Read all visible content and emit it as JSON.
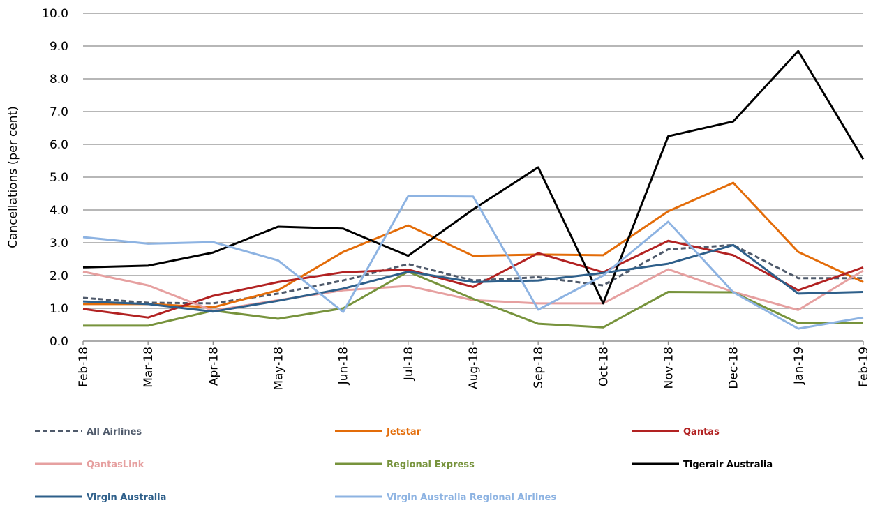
{
  "chart_data": {
    "type": "line",
    "y_label": "Cancellations (per cent)",
    "categories": [
      "Feb-18",
      "Mar-18",
      "Apr-18",
      "May-18",
      "Jun-18",
      "Jul-18",
      "Aug-18",
      "Sep-18",
      "Oct-18",
      "Nov-18",
      "Dec-18",
      "Jan-19",
      "Feb-19"
    ],
    "ylim": [
      0,
      10
    ],
    "yticks": [
      {
        "value": 0,
        "label": "0.0"
      },
      {
        "value": 1,
        "label": "1.0"
      },
      {
        "value": 2,
        "label": "2.0"
      },
      {
        "value": 3,
        "label": "3.0"
      },
      {
        "value": 4,
        "label": "4.0"
      },
      {
        "value": 5,
        "label": "5.0"
      },
      {
        "value": 6,
        "label": "6.0"
      },
      {
        "value": 7,
        "label": "7.0"
      },
      {
        "value": 8,
        "label": "8.0"
      },
      {
        "value": 9,
        "label": "9.0"
      },
      {
        "value": 10,
        "label": "10.0"
      }
    ],
    "grid": true,
    "legend": "bottom",
    "series": [
      {
        "name": "All Airlines",
        "color": "#4f5a6b",
        "dashed": true,
        "values": [
          1.32,
          1.17,
          1.15,
          1.45,
          1.85,
          2.35,
          1.85,
          1.95,
          1.7,
          2.8,
          2.93,
          1.92,
          1.92
        ]
      },
      {
        "name": "Jetstar",
        "color": "#e36c09",
        "values": [
          1.13,
          1.13,
          1.03,
          1.55,
          2.72,
          3.53,
          2.6,
          2.64,
          2.62,
          3.96,
          4.83,
          2.72,
          1.8
        ]
      },
      {
        "name": "Qantas",
        "color": "#b22222",
        "values": [
          0.98,
          0.72,
          1.38,
          1.8,
          2.1,
          2.18,
          1.65,
          2.68,
          2.1,
          3.06,
          2.62,
          1.55,
          2.25
        ]
      },
      {
        "name": "QantasLink",
        "color": "#e6a0a0",
        "values": [
          2.12,
          1.7,
          0.93,
          1.25,
          1.55,
          1.68,
          1.25,
          1.15,
          1.15,
          2.19,
          1.5,
          0.95,
          2.15
        ]
      },
      {
        "name": "Regional Express",
        "color": "#77933c",
        "values": [
          0.47,
          0.47,
          0.93,
          0.68,
          1.0,
          2.12,
          1.29,
          0.53,
          0.42,
          1.5,
          1.49,
          0.55,
          0.55
        ]
      },
      {
        "name": "Tigerair Australia",
        "color": "#000000",
        "values": [
          2.25,
          2.3,
          2.7,
          3.49,
          3.43,
          2.6,
          4.02,
          5.3,
          1.15,
          6.25,
          6.7,
          8.85,
          5.55
        ]
      },
      {
        "name": "Virgin Australia",
        "color": "#2e5f8a",
        "values": [
          1.21,
          1.13,
          0.9,
          1.23,
          1.6,
          2.12,
          1.8,
          1.85,
          2.08,
          2.36,
          2.93,
          1.45,
          1.5
        ]
      },
      {
        "name": "Virgin Australia Regional Airlines",
        "color": "#8db3e2",
        "values": [
          3.17,
          2.97,
          3.02,
          2.46,
          0.89,
          4.42,
          4.41,
          0.96,
          2.0,
          3.64,
          1.49,
          0.38,
          0.72
        ]
      }
    ]
  }
}
